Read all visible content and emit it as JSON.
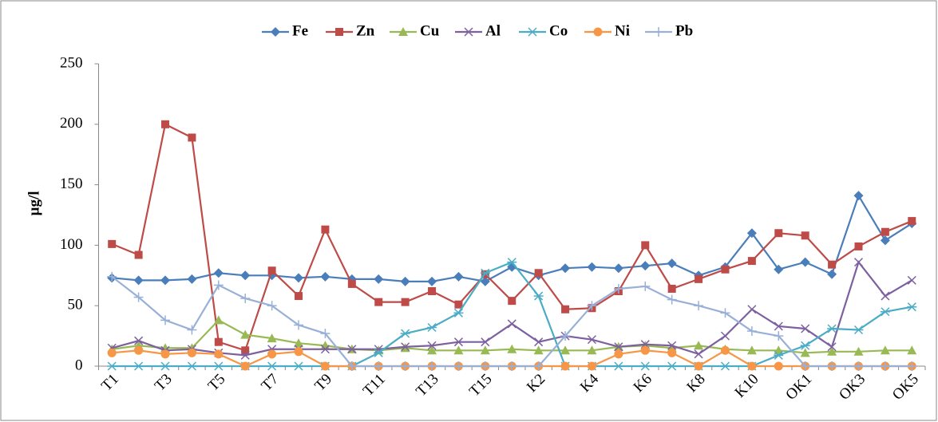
{
  "chart_data": {
    "type": "line",
    "y_label": "µg/l",
    "categories": [
      "T1",
      null,
      "T3",
      null,
      "T5",
      null,
      "T7",
      null,
      "T9",
      null,
      "T11",
      null,
      "T13",
      null,
      "T15",
      null,
      "K2",
      null,
      "K4",
      null,
      "K6",
      null,
      "K8",
      null,
      "K10",
      null,
      "OK1",
      null,
      "OK3",
      null,
      "OK5"
    ],
    "series": [
      {
        "name": "Fe",
        "color": "#4a7ebb",
        "marker": "diamond",
        "values": [
          73,
          71,
          71,
          72,
          77,
          75,
          75,
          73,
          74,
          72,
          72,
          70,
          70,
          74,
          70,
          82,
          75,
          81,
          82,
          81,
          83,
          85,
          75,
          82,
          110,
          80,
          86,
          76,
          141,
          104,
          118
        ]
      },
      {
        "name": "Zn",
        "color": "#be4b48",
        "marker": "square",
        "values": [
          101,
          92,
          200,
          189,
          20,
          13,
          79,
          58,
          113,
          68,
          53,
          53,
          62,
          51,
          76,
          54,
          77,
          47,
          48,
          62,
          100,
          64,
          72,
          80,
          87,
          110,
          108,
          84,
          99,
          111,
          120
        ]
      },
      {
        "name": "Cu",
        "color": "#98b954",
        "marker": "triangle",
        "values": [
          14,
          17,
          15,
          15,
          38,
          26,
          23,
          19,
          17,
          14,
          13,
          15,
          13,
          13,
          13,
          14,
          13,
          13,
          13,
          16,
          17,
          15,
          17,
          14,
          13,
          13,
          11,
          12,
          12,
          13,
          13
        ]
      },
      {
        "name": "Al",
        "color": "#7d60a0",
        "marker": "x",
        "values": [
          15,
          21,
          13,
          14,
          11,
          9,
          14,
          14,
          14,
          14,
          14,
          16,
          17,
          20,
          20,
          35,
          20,
          25,
          22,
          16,
          18,
          17,
          10,
          25,
          47,
          33,
          31,
          16,
          86,
          58,
          71
        ]
      },
      {
        "name": "Co",
        "color": "#4bacc6",
        "marker": "star",
        "values": [
          0,
          0,
          0,
          0,
          0,
          0,
          0,
          0,
          0,
          0,
          11,
          27,
          32,
          44,
          77,
          86,
          58,
          0,
          0,
          0,
          0,
          0,
          0,
          0,
          0,
          9,
          17,
          31,
          30,
          45,
          49
        ]
      },
      {
        "name": "Ni",
        "color": "#f79646",
        "marker": "circle",
        "values": [
          11,
          13,
          10,
          11,
          10,
          0,
          10,
          12,
          0,
          0,
          0,
          0,
          0,
          0,
          0,
          0,
          0,
          0,
          0,
          10,
          13,
          11,
          0,
          13,
          0,
          0,
          0,
          0,
          0,
          0,
          0
        ]
      },
      {
        "name": "Pb",
        "color": "#98b0d8",
        "marker": "plus",
        "values": [
          74,
          57,
          38,
          30,
          67,
          56,
          50,
          34,
          27,
          0,
          0,
          0,
          0,
          0,
          0,
          0,
          0,
          25,
          50,
          64,
          66,
          55,
          50,
          44,
          29,
          25,
          0,
          0,
          0,
          0,
          0
        ]
      }
    ],
    "ylim": [
      0,
      250
    ],
    "yticks": [
      0,
      50,
      100,
      150,
      200,
      250
    ],
    "grid": false,
    "legend": "top"
  }
}
